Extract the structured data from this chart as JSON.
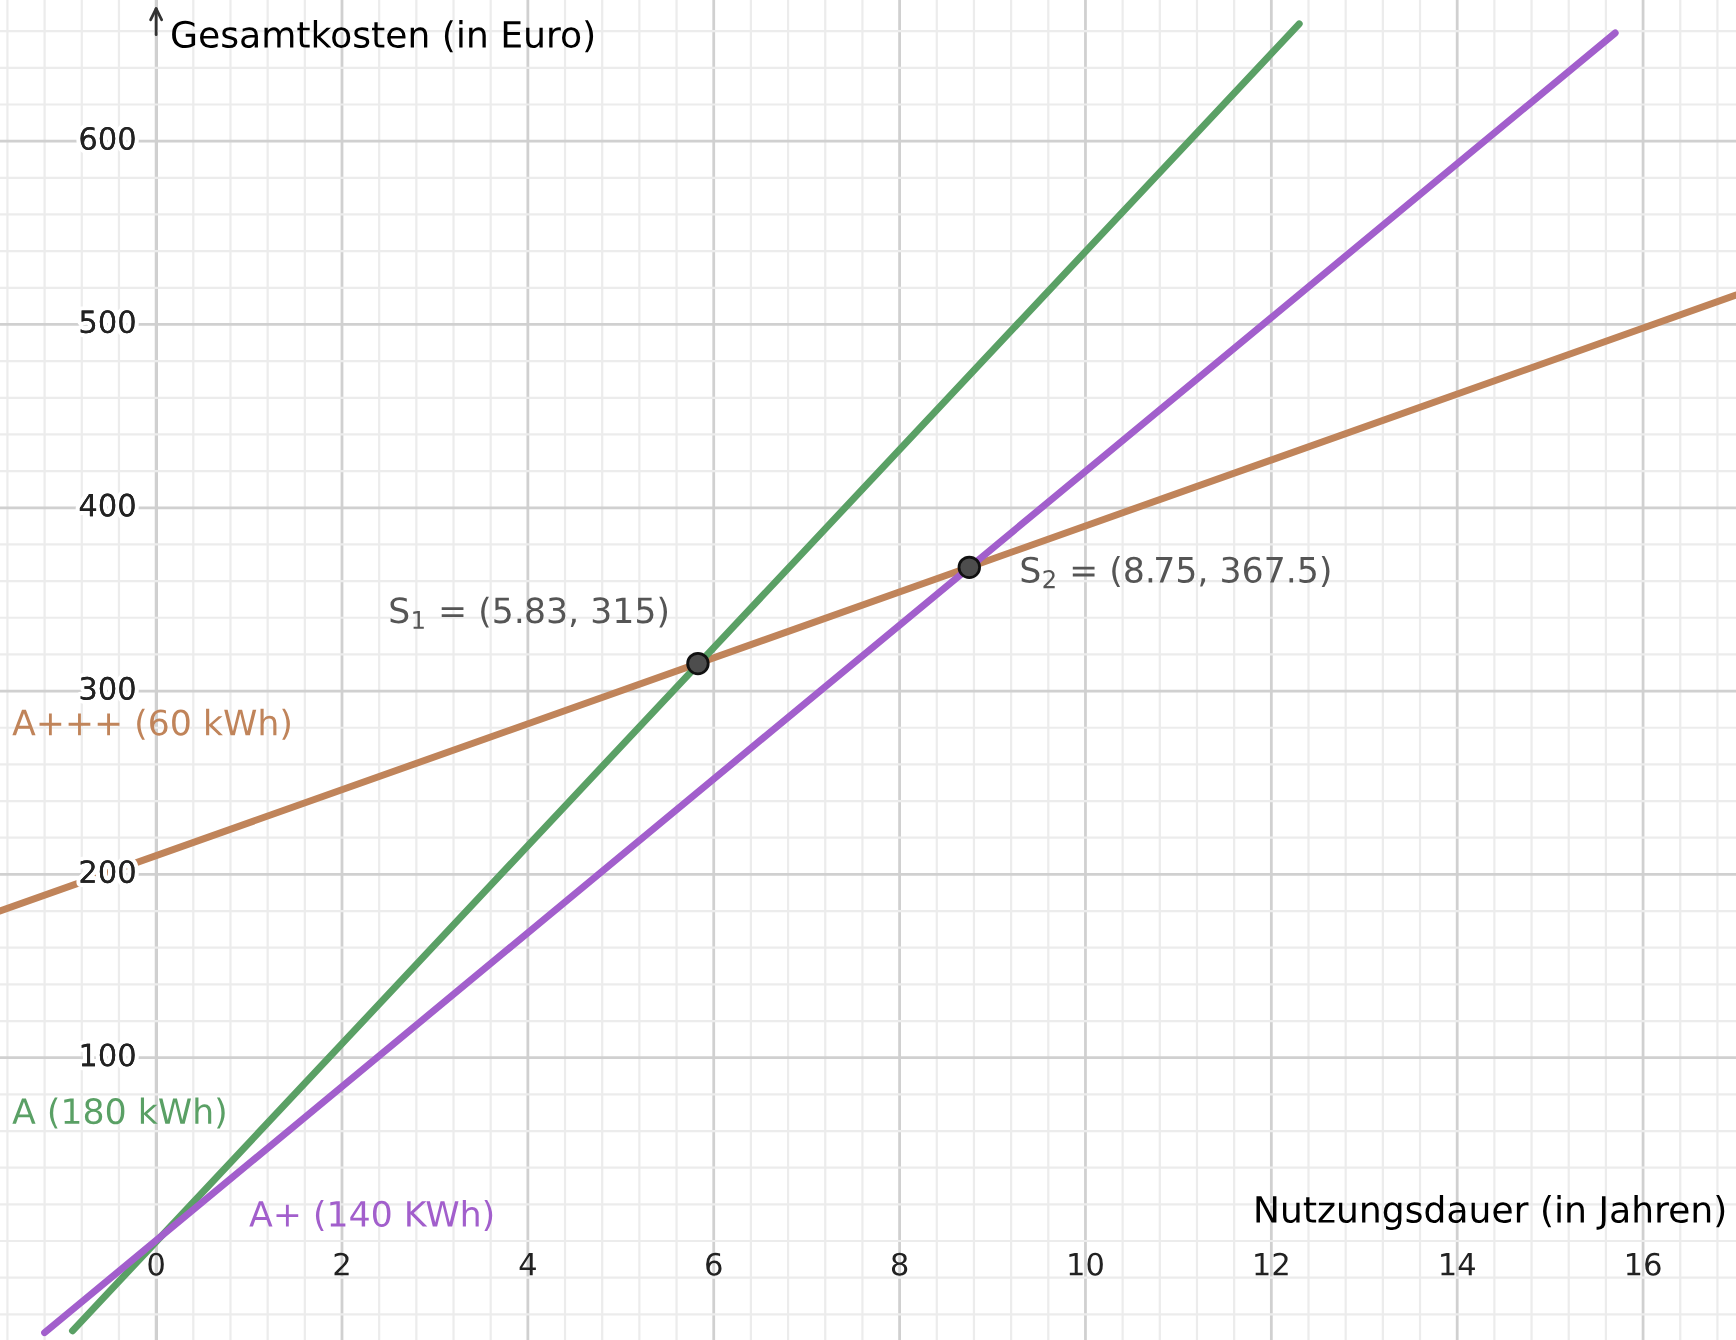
{
  "chart_data": {
    "type": "line",
    "xlabel": "Nutzungsdauer (in Jahren)",
    "ylabel": "Gesamtkosten (in Euro)",
    "xlim": [
      -1.68,
      17
    ],
    "ylim": [
      -54,
      677
    ],
    "xticks": [
      0,
      2,
      4,
      6,
      8,
      10,
      12,
      14,
      16
    ],
    "yticks": [
      100,
      200,
      300,
      400,
      500,
      600
    ],
    "grid": true,
    "series": [
      {
        "name": "A+++ (60 kWh)",
        "color": "#c0845a",
        "x": [
          -1.68,
          17
        ],
        "values": [
          180,
          516
        ]
      },
      {
        "name": "A (180 kWh)",
        "color": "#5aa065",
        "x": [
          -0.9,
          12.3
        ],
        "values": [
          -49,
          664
        ]
      },
      {
        "name": "A+ (140 KWh)",
        "color": "#a25fcc",
        "x": [
          -1.2,
          15.7
        ],
        "values": [
          -50,
          659
        ]
      },
      {
        "type": "scatter",
        "color": "#4d4d4d",
        "x": [
          5.83,
          8.75
        ],
        "values": [
          315,
          367.5
        ]
      }
    ],
    "annotations": [
      {
        "text": "S$_{1}$ = (5.83, 315)",
        "x": 5.83,
        "y": 315
      },
      {
        "text": "S$_{2}$ = (8.75, 367.5)",
        "x": 8.75,
        "y": 367.5
      }
    ]
  }
}
